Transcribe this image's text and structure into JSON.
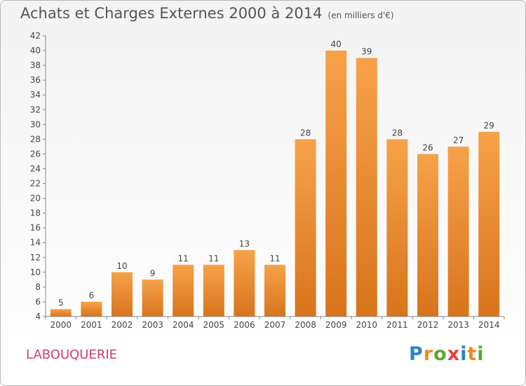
{
  "title": "Achats et Charges Externes 2000 à 2014",
  "unit": "(en milliers d'€)",
  "commune": "LABOUQUERIE",
  "logo": {
    "letters": [
      "P",
      "r",
      "o",
      "x",
      "i",
      "t",
      "i"
    ],
    "colors": [
      "#2a86c8",
      "#f08a1c",
      "#5aa832",
      "#e8403a",
      "#2a86c8",
      "#f08a1c",
      "#5aa832"
    ]
  },
  "chart_data": {
    "type": "bar",
    "title": "Achats et Charges Externes 2000 à 2014",
    "categories": [
      "2000",
      "2001",
      "2002",
      "2003",
      "2004",
      "2005",
      "2006",
      "2007",
      "2008",
      "2009",
      "2010",
      "2011",
      "2012",
      "2013",
      "2014"
    ],
    "values": [
      5,
      6,
      10,
      9,
      11,
      11,
      13,
      11,
      28,
      40,
      39,
      28,
      26,
      27,
      29
    ],
    "ylim": [
      4,
      42
    ],
    "yticks": [
      4,
      6,
      8,
      10,
      12,
      14,
      16,
      18,
      20,
      22,
      24,
      26,
      28,
      30,
      32,
      34,
      36,
      38,
      40,
      42
    ],
    "grid": false,
    "legend": "none",
    "bar_color": "#f08a2a"
  }
}
